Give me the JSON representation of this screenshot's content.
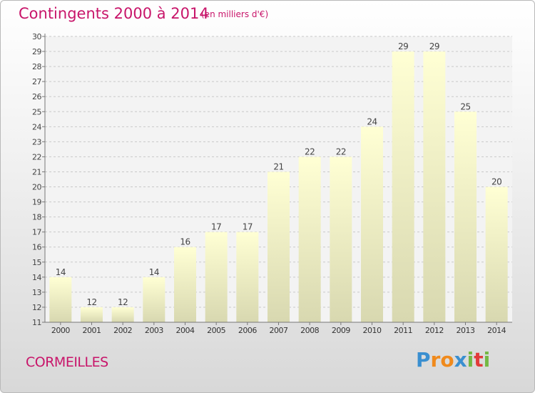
{
  "title": "Contingents 2000 à 2014",
  "subtitle": "(en milliers d'€)",
  "city": "CORMEILLES",
  "logo": {
    "letters": [
      "P",
      "r",
      "o",
      "x",
      "i",
      "t",
      "i"
    ],
    "colors": [
      "#3a8fd0",
      "#f08a1c",
      "#f08a1c",
      "#3a8fd0",
      "#74b843",
      "#e23b3b",
      "#74b843"
    ]
  },
  "chart_data": {
    "type": "bar",
    "categories": [
      "2000",
      "2001",
      "2002",
      "2003",
      "2004",
      "2005",
      "2006",
      "2007",
      "2008",
      "2009",
      "2010",
      "2011",
      "2012",
      "2013",
      "2014"
    ],
    "values": [
      14,
      12,
      12,
      14,
      16,
      17,
      17,
      21,
      22,
      22,
      24,
      29,
      29,
      25,
      20
    ],
    "ylim": [
      11,
      30
    ],
    "yticks": [
      11,
      12,
      13,
      14,
      15,
      16,
      17,
      18,
      19,
      20,
      21,
      22,
      23,
      24,
      25,
      26,
      27,
      28,
      29,
      30
    ],
    "grid": true,
    "bar_color_top": "#ffffd4",
    "bar_color_bottom": "#d8d8b0"
  }
}
